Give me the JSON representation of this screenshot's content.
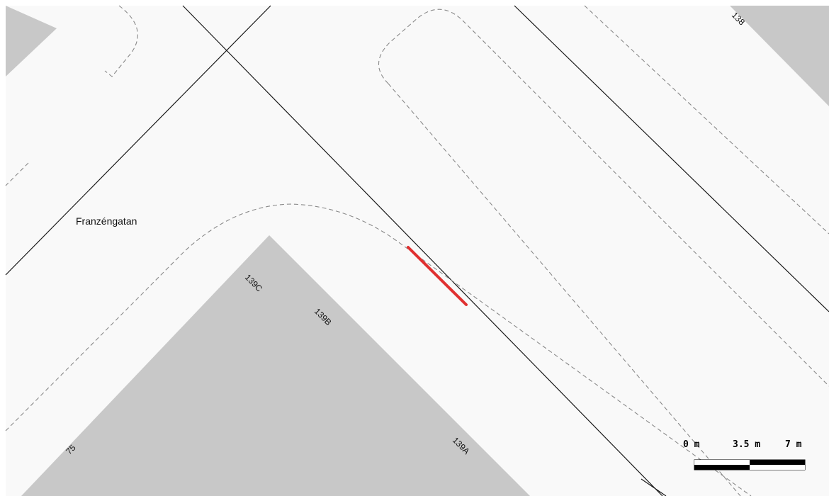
{
  "map": {
    "colors": {
      "land": "#f9f9f9",
      "building": "#c8c8c8",
      "road_edge": "#1a1a1a",
      "kerb_dash": "#8a8a8a",
      "highlight": "#e03030"
    },
    "street_labels": {
      "franzengatan": "Franzéngatan"
    },
    "building_labels": {
      "b138": "138",
      "b139c": "139C",
      "b139b": "139B",
      "b139a": "139A",
      "b75": "75"
    },
    "scale_bar": {
      "label_start": "0 m",
      "label_mid": "3.5 m",
      "label_end": "7 m"
    }
  }
}
